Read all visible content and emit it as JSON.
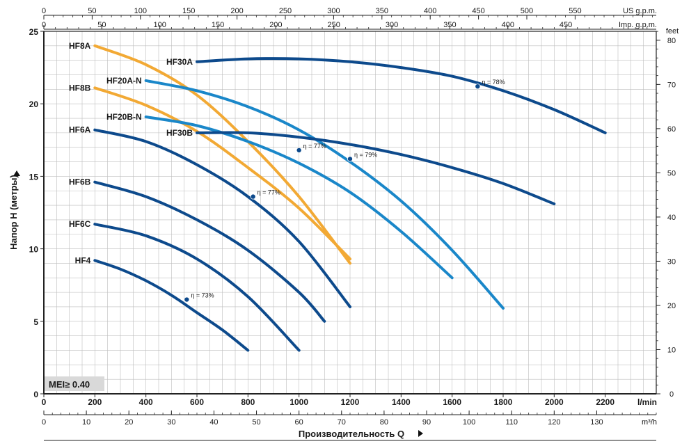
{
  "chart_data": {
    "type": "line",
    "title": "",
    "xlabel": "Производительность Q",
    "ylabel": "Напор H (метры)",
    "xlim": [
      0,
      2400
    ],
    "ylim": [
      0,
      25
    ],
    "x_unit": "l/min",
    "x_ticks": [
      0,
      200,
      400,
      600,
      800,
      1000,
      1200,
      1400,
      1600,
      1800,
      2000,
      2200
    ],
    "y_ticks": [
      0,
      5,
      10,
      15,
      20,
      25
    ],
    "grid": true,
    "mei_label": "MEI≥ 0.40",
    "secondary_axes": {
      "us_gpm": {
        "label": "US g.p.m.",
        "ticks": [
          0,
          50,
          100,
          150,
          200,
          250,
          300,
          350,
          400,
          450,
          500,
          550
        ]
      },
      "imp_gpm": {
        "label": "Imp. g.p.m.",
        "ticks": [
          0,
          50,
          100,
          150,
          200,
          250,
          300,
          350,
          400,
          450
        ]
      },
      "m3h": {
        "label": "m³/h",
        "ticks": [
          0,
          10,
          20,
          30,
          40,
          50,
          60,
          70,
          80,
          90,
          100,
          110,
          120,
          130
        ]
      },
      "feet": {
        "label": "feet",
        "ticks": [
          0,
          10,
          20,
          30,
          40,
          50,
          60,
          70,
          80
        ]
      }
    },
    "colors": {
      "dark_blue": "#0d4a8c",
      "light_blue": "#1a87c9",
      "orange": "#f2a934",
      "grid": "#bdbdbd",
      "axis": "#222222"
    },
    "series": [
      {
        "name": "HF8A",
        "color": "orange",
        "x": [
          200,
          400,
          600,
          800,
          1000,
          1200
        ],
        "y": [
          24.0,
          22.7,
          20.6,
          17.4,
          13.6,
          9.0
        ]
      },
      {
        "name": "HF8B",
        "color": "orange",
        "x": [
          200,
          400,
          600,
          800,
          1000,
          1200
        ],
        "y": [
          21.1,
          19.9,
          18.1,
          15.6,
          12.8,
          9.3
        ]
      },
      {
        "name": "HF30A",
        "color": "dark_blue",
        "x": [
          600,
          800,
          1000,
          1200,
          1400,
          1600,
          1800,
          2000,
          2200
        ],
        "y": [
          22.9,
          23.1,
          23.1,
          22.9,
          22.5,
          21.9,
          20.9,
          19.6,
          18.0
        ]
      },
      {
        "name": "HF20A-N",
        "color": "light_blue",
        "x": [
          400,
          600,
          800,
          1000,
          1200,
          1400,
          1600,
          1800
        ],
        "y": [
          21.6,
          20.9,
          19.8,
          18.2,
          16.0,
          13.3,
          9.9,
          5.9
        ]
      },
      {
        "name": "HF20B-N",
        "color": "light_blue",
        "x": [
          400,
          600,
          800,
          1000,
          1200,
          1400,
          1600
        ],
        "y": [
          19.1,
          18.5,
          17.4,
          15.9,
          13.9,
          11.2,
          8.0
        ]
      },
      {
        "name": "HF30B",
        "color": "dark_blue",
        "x": [
          600,
          800,
          1000,
          1200,
          1400,
          1600,
          1800,
          2000
        ],
        "y": [
          18.0,
          18.0,
          17.7,
          17.2,
          16.5,
          15.6,
          14.5,
          13.1
        ]
      },
      {
        "name": "HF6A",
        "color": "dark_blue",
        "x": [
          200,
          400,
          600,
          800,
          1000,
          1200
        ],
        "y": [
          18.2,
          17.4,
          15.8,
          13.6,
          10.5,
          6.0
        ]
      },
      {
        "name": "HF6B",
        "color": "dark_blue",
        "x": [
          200,
          400,
          600,
          800,
          1000,
          1100
        ],
        "y": [
          14.6,
          13.6,
          12.0,
          9.9,
          7.0,
          5.0
        ]
      },
      {
        "name": "HF6C",
        "color": "dark_blue",
        "x": [
          200,
          400,
          600,
          800,
          1000
        ],
        "y": [
          11.7,
          10.9,
          9.3,
          6.7,
          3.0
        ]
      },
      {
        "name": "HF4",
        "color": "dark_blue",
        "x": [
          200,
          300,
          400,
          500,
          600,
          700,
          800
        ],
        "y": [
          9.2,
          8.6,
          7.8,
          6.8,
          5.6,
          4.4,
          3.0
        ]
      }
    ],
    "efficiency_points": [
      {
        "label": "η = 78%",
        "x": 1700,
        "y": 21.2
      },
      {
        "label": "η = 77%",
        "x": 1000,
        "y": 16.8
      },
      {
        "label": "η = 79%",
        "x": 1200,
        "y": 16.2
      },
      {
        "label": "η = 77%",
        "x": 820,
        "y": 13.6
      },
      {
        "label": "η = 73%",
        "x": 560,
        "y": 6.5
      }
    ]
  }
}
